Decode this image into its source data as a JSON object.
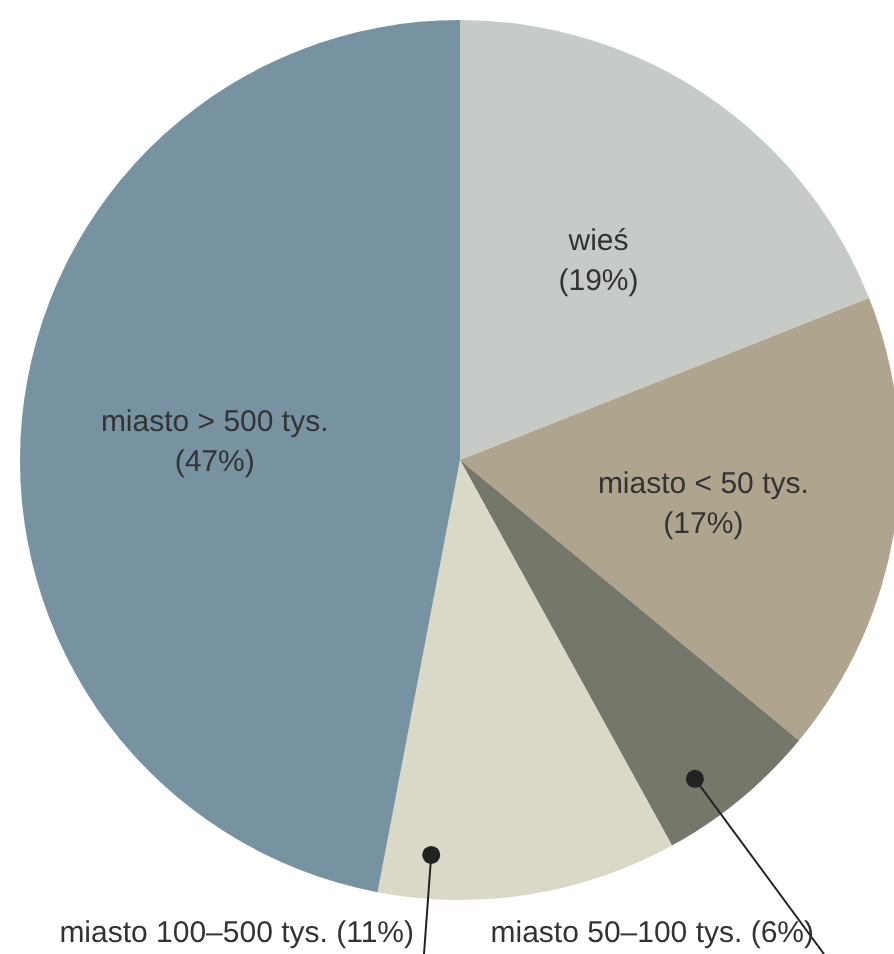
{
  "chart_data": {
    "type": "pie",
    "categories": [
      "wieś",
      "miasto < 50 tys.",
      "miasto 50–100 tys.",
      "miasto 100–500 tys.",
      "miasto > 500 tys."
    ],
    "values": [
      19,
      17,
      6,
      11,
      47
    ],
    "colors": [
      "#c6cbc7",
      "#afa48d",
      "#75776a",
      "#dad8c6",
      "#7793a1"
    ],
    "value_labels": [
      "(19%)",
      "(17%)",
      "(6%)",
      "(11%)",
      "(47%)"
    ]
  }
}
